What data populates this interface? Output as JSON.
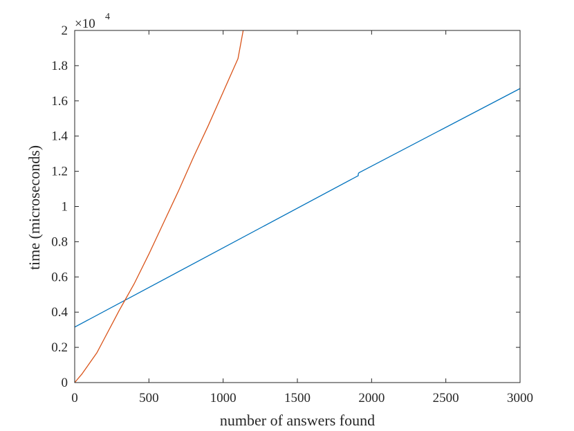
{
  "chart_data": {
    "type": "line",
    "title": "",
    "xlabel": "number of answers found",
    "ylabel": "time (microseconds)",
    "xlim": [
      0,
      3000
    ],
    "ylim": [
      0,
      2
    ],
    "y_exponent_label": "×10",
    "y_exponent_power": "4",
    "xticks": [
      0,
      500,
      1000,
      1500,
      2000,
      2500,
      3000
    ],
    "xtick_labels": [
      "0",
      "500",
      "1000",
      "1500",
      "2000",
      "2500",
      "3000"
    ],
    "yticks": [
      0,
      0.2,
      0.4,
      0.6,
      0.8,
      1,
      1.2,
      1.4,
      1.6,
      1.8,
      2
    ],
    "ytick_labels": [
      "0",
      "0.2",
      "0.4",
      "0.6",
      "0.8",
      "1",
      "1.2",
      "1.4",
      "1.6",
      "1.8",
      "2"
    ],
    "grid": false,
    "legend": "none",
    "series": [
      {
        "color": "#0072BD",
        "x": [
          0,
          1910,
          1910,
          1915,
          3000
        ],
        "y": [
          0.315,
          1.175,
          1.185,
          1.192,
          1.67
        ]
      },
      {
        "color": "#D95319",
        "x": [
          0,
          50,
          100,
          150,
          200,
          250,
          300,
          340,
          400,
          500,
          600,
          700,
          800,
          900,
          1000,
          1100,
          1135
        ],
        "y": [
          0,
          0.05,
          0.11,
          0.17,
          0.25,
          0.33,
          0.41,
          0.47,
          0.56,
          0.73,
          0.91,
          1.09,
          1.28,
          1.46,
          1.65,
          1.84,
          2.0
        ]
      }
    ]
  }
}
